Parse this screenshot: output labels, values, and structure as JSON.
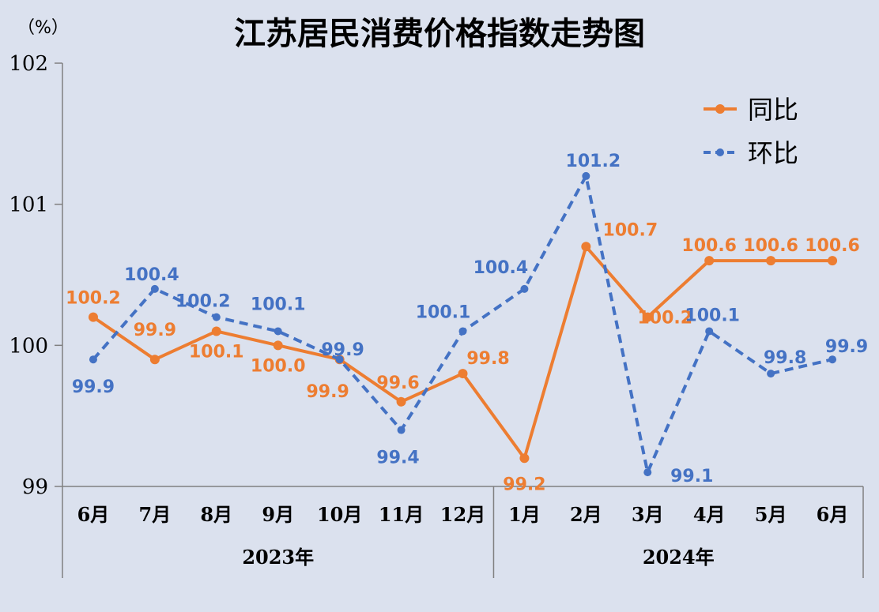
{
  "chart_data": {
    "type": "line",
    "title": "江苏居民消费价格指数走势图",
    "unit_label": "（%）",
    "categories": [
      "6月",
      "7月",
      "8月",
      "9月",
      "10月",
      "11月",
      "12月",
      "1月",
      "2月",
      "3月",
      "4月",
      "5月",
      "6月"
    ],
    "groups": [
      {
        "label": "2023年",
        "start": 0,
        "end": 6
      },
      {
        "label": "2024年",
        "start": 7,
        "end": 12
      }
    ],
    "ylim": [
      99,
      102
    ],
    "yticks": [
      "99",
      "100",
      "101",
      "102"
    ],
    "legend_position": "top-right",
    "grid": false,
    "series": [
      {
        "name": "同比",
        "color": "#ed7d31",
        "style": "solid",
        "values": [
          100.2,
          99.9,
          100.1,
          100.0,
          99.9,
          99.6,
          99.8,
          99.2,
          100.7,
          100.2,
          100.6,
          100.6,
          100.6
        ],
        "labels": [
          "100.2",
          "99.9",
          "100.1",
          "100.0",
          "99.9",
          "99.6",
          "99.8",
          "99.2",
          "100.7",
          "100.2",
          "100.6",
          "100.6",
          "100.6"
        ]
      },
      {
        "name": "环比",
        "color": "#4472c4",
        "style": "dashed",
        "values": [
          99.9,
          100.4,
          100.2,
          100.1,
          99.9,
          99.4,
          100.1,
          100.4,
          101.2,
          99.1,
          100.1,
          99.8,
          99.9
        ],
        "labels": [
          "99.9",
          "100.4",
          "100.2",
          "100.1",
          "99.9",
          "99.4",
          "100.1",
          "100.4",
          "101.2",
          "99.1",
          "100.1",
          "99.8",
          "99.9"
        ]
      }
    ]
  }
}
